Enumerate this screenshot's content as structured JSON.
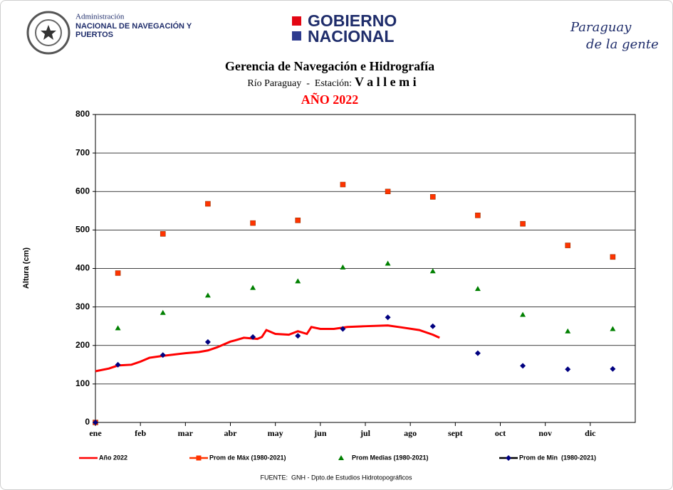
{
  "header": {
    "agency_line1": "Administración",
    "agency_line2": "NACIONAL DE NAVEGACIÓN Y",
    "agency_line3": "PUERTOS",
    "gov_line1": "GOBIERNO",
    "gov_line2": "NACIONAL",
    "slogan_line1": "Paraguay",
    "slogan_line2": "de la gente"
  },
  "chart_data": {
    "type": "scatter",
    "title": "Gerencia de Navegación e Hidrografía",
    "subtitle": "Río Paraguay  -  Estación:",
    "station": "V a l l e m i",
    "year_label": "AÑO 2022",
    "y_label": "Altura (cm)",
    "source": "FUENTE:  GNH - Dpto.de Estudios Hidrotopográficos",
    "xlim": [
      0,
      12
    ],
    "ylim": [
      0,
      800
    ],
    "yticks": [
      0,
      100,
      200,
      300,
      400,
      500,
      600,
      700,
      800
    ],
    "grid": true,
    "xticks": [
      {
        "value": 0,
        "label": "ene"
      },
      {
        "value": 1,
        "label": "feb"
      },
      {
        "value": 2,
        "label": "mar"
      },
      {
        "value": 3,
        "label": "abr"
      },
      {
        "value": 4,
        "label": "may"
      },
      {
        "value": 5,
        "label": "jun"
      },
      {
        "value": 6,
        "label": "jul"
      },
      {
        "value": 7,
        "label": "ago"
      },
      {
        "value": 8,
        "label": "sept"
      },
      {
        "value": 9,
        "label": "oct"
      },
      {
        "value": 10,
        "label": "nov"
      },
      {
        "value": 11,
        "label": "dic"
      }
    ],
    "series": [
      {
        "name": "Año 2022",
        "color": "#ff0000",
        "marker": "line",
        "x": [
          0,
          0.3,
          0.5,
          0.8,
          1.0,
          1.2,
          1.5,
          2.0,
          2.3,
          2.5,
          2.7,
          3.0,
          3.1,
          3.3,
          3.6,
          3.7,
          3.8,
          4.0,
          4.3,
          4.5,
          4.7,
          4.8,
          5.0,
          5.3,
          5.6,
          6.0,
          6.5,
          6.8,
          7.2,
          7.5,
          7.65
        ],
        "values": [
          133,
          140,
          148,
          150,
          158,
          168,
          173,
          180,
          183,
          187,
          195,
          210,
          213,
          220,
          217,
          222,
          240,
          230,
          228,
          237,
          230,
          248,
          243,
          243,
          248,
          250,
          252,
          247,
          240,
          228,
          220
        ]
      },
      {
        "name": "Prom de Máx (1980-2021)",
        "color": "#ff3300",
        "marker": "square",
        "x": [
          0,
          0.5,
          1.5,
          2.5,
          3.5,
          4.5,
          5.5,
          6.5,
          7.5,
          8.5,
          9.5,
          10.5,
          11.5
        ],
        "values": [
          0,
          388,
          490,
          568,
          518,
          525,
          618,
          600,
          586,
          538,
          516,
          460,
          430
        ]
      },
      {
        "name": "Prom Medias (1980-2021)",
        "color": "#008000",
        "marker": "triangle",
        "x": [
          0.5,
          1.5,
          2.5,
          3.5,
          4.5,
          5.5,
          6.5,
          7.5,
          8.5,
          9.5,
          10.5,
          11.5
        ],
        "values": [
          245,
          285,
          330,
          350,
          367,
          403,
          413,
          393,
          347,
          280,
          237,
          243
        ]
      },
      {
        "name": "Prom de Min  (1980-2021)",
        "color": "#000080",
        "marker": "diamond",
        "x": [
          0,
          0.5,
          1.5,
          2.5,
          3.5,
          4.5,
          5.5,
          6.5,
          7.5,
          8.5,
          9.5,
          10.5,
          11.5
        ],
        "values": [
          0,
          150,
          175,
          209,
          222,
          225,
          243,
          273,
          250,
          180,
          147,
          138,
          139
        ]
      }
    ]
  }
}
